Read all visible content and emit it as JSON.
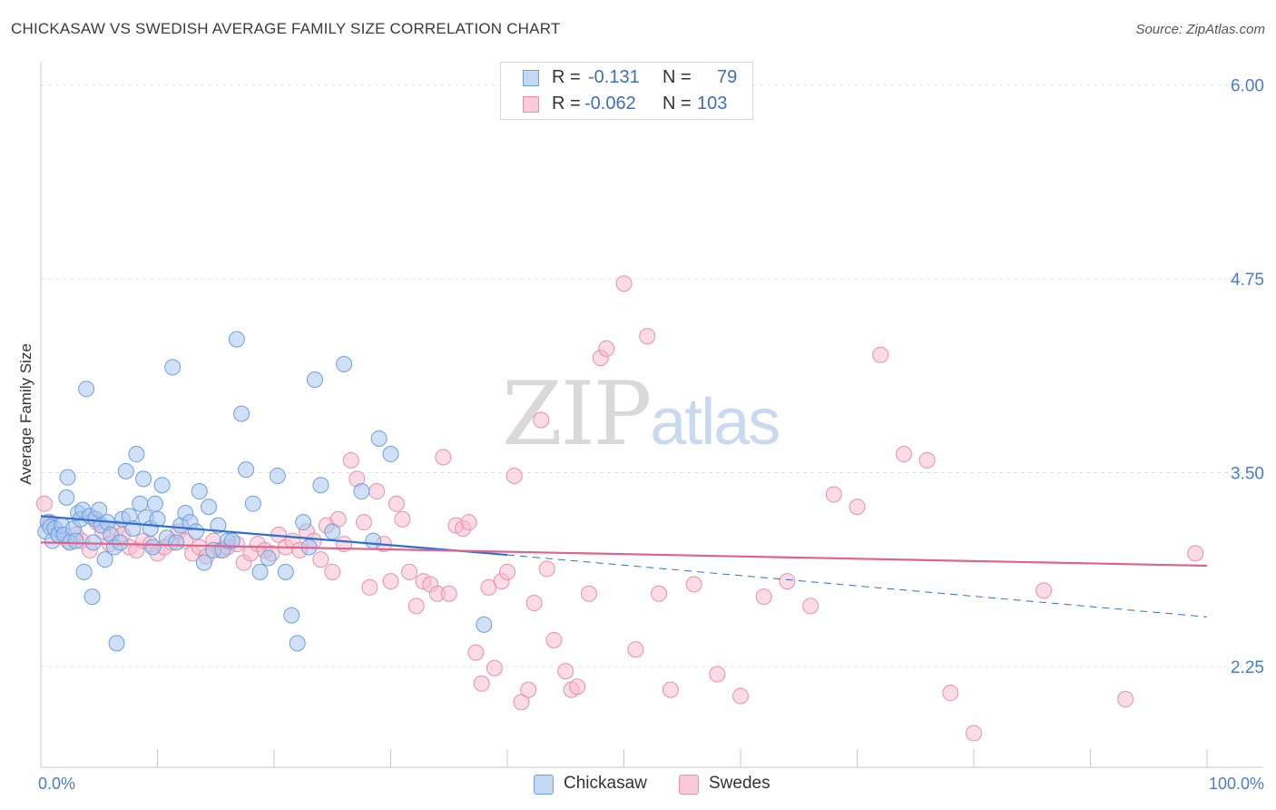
{
  "title": "CHICKASAW VS SWEDISH AVERAGE FAMILY SIZE CORRELATION CHART",
  "source": "Source: ZipAtlas.com",
  "watermark": {
    "part1": "ZIP",
    "part2": "atlas"
  },
  "legend_top": {
    "rows": [
      {
        "r_label": "R =",
        "r_value": "-0.131",
        "n_label": "N =",
        "n_value": "79"
      },
      {
        "r_label": "R =",
        "r_value": "-0.062",
        "n_label": "N =",
        "n_value": "103"
      }
    ]
  },
  "legend_bottom": {
    "items": [
      "Chickasaw",
      "Swedes"
    ]
  },
  "colors": {
    "chickasaw_fill": "#a9c6ef",
    "chickasaw_stroke": "#6e9fde",
    "chickasaw_line": "#2f6fd0",
    "swedes_fill": "#f7b9cc",
    "swedes_stroke": "#ea8fac",
    "swedes_line": "#e0638d",
    "tick_label": "#4a7cc9",
    "grid": "#e3e3e3"
  },
  "chart_data": {
    "type": "scatter",
    "title": "CHICKASAW VS SWEDISH AVERAGE FAMILY SIZE CORRELATION CHART",
    "xlabel": "",
    "ylabel": "Average Family Size",
    "xlim": [
      0,
      100
    ],
    "ylim": [
      1.6,
      6.15
    ],
    "x_tick_labels": [
      "0.0%",
      "100.0%"
    ],
    "y_ticks": [
      2.25,
      3.5,
      4.75,
      6.0
    ],
    "y_tick_labels": [
      "2.25",
      "3.50",
      "4.75",
      "6.00"
    ],
    "grid": true,
    "series": [
      {
        "name": "Chickasaw",
        "R": -0.131,
        "N": 79,
        "trend": {
          "x0": 0,
          "y0": 3.22,
          "x1": 40,
          "y1": 2.97,
          "dashed_to_x": 100,
          "dashed_to_y": 2.57
        },
        "points": [
          [
            0.4,
            3.12
          ],
          [
            0.6,
            3.18
          ],
          [
            0.8,
            3.15
          ],
          [
            1.0,
            3.06
          ],
          [
            1.2,
            3.14
          ],
          [
            1.5,
            3.1
          ],
          [
            1.8,
            3.16
          ],
          [
            2.0,
            3.1
          ],
          [
            2.2,
            3.34
          ],
          [
            2.3,
            3.47
          ],
          [
            2.5,
            3.05
          ],
          [
            2.8,
            3.14
          ],
          [
            3.0,
            3.06
          ],
          [
            3.2,
            3.24
          ],
          [
            3.4,
            3.2
          ],
          [
            3.6,
            3.26
          ],
          [
            3.7,
            2.86
          ],
          [
            3.9,
            4.04
          ],
          [
            4.2,
            3.22
          ],
          [
            4.4,
            2.7
          ],
          [
            4.5,
            3.05
          ],
          [
            4.7,
            3.2
          ],
          [
            5.0,
            3.26
          ],
          [
            5.2,
            3.16
          ],
          [
            5.5,
            2.94
          ],
          [
            5.7,
            3.18
          ],
          [
            6.0,
            3.1
          ],
          [
            6.3,
            3.02
          ],
          [
            6.5,
            2.4
          ],
          [
            6.8,
            3.05
          ],
          [
            7.0,
            3.2
          ],
          [
            7.3,
            3.51
          ],
          [
            7.6,
            3.22
          ],
          [
            7.9,
            3.14
          ],
          [
            8.2,
            3.62
          ],
          [
            8.5,
            3.3
          ],
          [
            8.8,
            3.46
          ],
          [
            9.0,
            3.21
          ],
          [
            9.4,
            3.14
          ],
          [
            9.6,
            3.02
          ],
          [
            9.8,
            3.3
          ],
          [
            10.0,
            3.2
          ],
          [
            10.4,
            3.42
          ],
          [
            10.8,
            3.08
          ],
          [
            11.3,
            4.18
          ],
          [
            11.6,
            3.05
          ],
          [
            12.0,
            3.16
          ],
          [
            12.4,
            3.24
          ],
          [
            12.8,
            3.18
          ],
          [
            13.3,
            3.12
          ],
          [
            13.6,
            3.38
          ],
          [
            14.0,
            2.92
          ],
          [
            14.4,
            3.28
          ],
          [
            14.8,
            3.0
          ],
          [
            15.2,
            3.16
          ],
          [
            15.6,
            3.0
          ],
          [
            16.0,
            3.06
          ],
          [
            16.4,
            3.06
          ],
          [
            16.8,
            4.36
          ],
          [
            17.2,
            3.88
          ],
          [
            17.6,
            3.52
          ],
          [
            18.2,
            3.3
          ],
          [
            18.8,
            2.86
          ],
          [
            19.5,
            2.95
          ],
          [
            20.3,
            3.48
          ],
          [
            21.0,
            2.86
          ],
          [
            21.5,
            2.58
          ],
          [
            22.0,
            2.4
          ],
          [
            22.5,
            3.18
          ],
          [
            23.0,
            3.02
          ],
          [
            23.5,
            4.1
          ],
          [
            24.0,
            3.42
          ],
          [
            25.0,
            3.12
          ],
          [
            26.0,
            4.2
          ],
          [
            27.5,
            3.38
          ],
          [
            28.5,
            3.06
          ],
          [
            29.0,
            3.72
          ],
          [
            30.0,
            3.62
          ],
          [
            38.0,
            2.52
          ]
        ]
      },
      {
        "name": "Swedes",
        "R": -0.062,
        "N": 103,
        "trend": {
          "x0": 0,
          "y0": 3.05,
          "x1": 100,
          "y1": 2.9
        },
        "points": [
          [
            0.3,
            3.3
          ],
          [
            0.8,
            3.18
          ],
          [
            1.5,
            3.1
          ],
          [
            2.3,
            3.06
          ],
          [
            3.0,
            3.1
          ],
          [
            3.5,
            3.06
          ],
          [
            4.2,
            3.0
          ],
          [
            4.8,
            3.18
          ],
          [
            5.3,
            3.12
          ],
          [
            5.9,
            3.04
          ],
          [
            6.5,
            3.14
          ],
          [
            7.0,
            3.1
          ],
          [
            7.6,
            3.02
          ],
          [
            8.2,
            3.0
          ],
          [
            8.8,
            3.06
          ],
          [
            9.4,
            3.04
          ],
          [
            10.0,
            2.98
          ],
          [
            10.6,
            3.02
          ],
          [
            11.2,
            3.05
          ],
          [
            11.8,
            3.12
          ],
          [
            12.4,
            3.06
          ],
          [
            13.0,
            2.98
          ],
          [
            13.6,
            3.02
          ],
          [
            14.2,
            2.96
          ],
          [
            14.8,
            3.06
          ],
          [
            15.4,
            3.0
          ],
          [
            16.0,
            3.02
          ],
          [
            16.8,
            3.04
          ],
          [
            17.4,
            2.92
          ],
          [
            18.0,
            2.98
          ],
          [
            18.6,
            3.04
          ],
          [
            19.2,
            3.0
          ],
          [
            19.8,
            2.98
          ],
          [
            20.4,
            3.1
          ],
          [
            21.0,
            3.02
          ],
          [
            21.6,
            3.06
          ],
          [
            22.2,
            3.0
          ],
          [
            22.8,
            3.12
          ],
          [
            23.4,
            3.06
          ],
          [
            24.0,
            2.94
          ],
          [
            24.5,
            3.16
          ],
          [
            25.0,
            2.86
          ],
          [
            25.5,
            3.2
          ],
          [
            26.0,
            3.04
          ],
          [
            26.6,
            3.58
          ],
          [
            27.1,
            3.46
          ],
          [
            27.7,
            3.18
          ],
          [
            28.2,
            2.76
          ],
          [
            28.8,
            3.38
          ],
          [
            29.4,
            3.04
          ],
          [
            30.0,
            2.8
          ],
          [
            30.5,
            3.3
          ],
          [
            31.0,
            3.2
          ],
          [
            31.6,
            2.86
          ],
          [
            32.2,
            2.64
          ],
          [
            32.8,
            2.8
          ],
          [
            33.4,
            2.78
          ],
          [
            34.0,
            2.72
          ],
          [
            34.5,
            3.6
          ],
          [
            35.0,
            2.72
          ],
          [
            35.6,
            3.16
          ],
          [
            36.2,
            3.14
          ],
          [
            36.7,
            3.18
          ],
          [
            37.3,
            2.34
          ],
          [
            37.8,
            2.14
          ],
          [
            38.4,
            2.76
          ],
          [
            38.9,
            2.24
          ],
          [
            39.5,
            2.8
          ],
          [
            40.0,
            2.86
          ],
          [
            40.6,
            3.48
          ],
          [
            41.2,
            2.02
          ],
          [
            41.8,
            2.1
          ],
          [
            42.3,
            2.66
          ],
          [
            42.9,
            3.84
          ],
          [
            43.4,
            2.88
          ],
          [
            44.0,
            2.42
          ],
          [
            45.0,
            2.22
          ],
          [
            45.5,
            2.1
          ],
          [
            46.0,
            2.12
          ],
          [
            47.0,
            2.72
          ],
          [
            48.0,
            4.24
          ],
          [
            48.5,
            4.3
          ],
          [
            50.0,
            4.72
          ],
          [
            51.0,
            2.36
          ],
          [
            52.0,
            4.38
          ],
          [
            53.0,
            2.72
          ],
          [
            54.0,
            2.1
          ],
          [
            56.0,
            2.78
          ],
          [
            58.0,
            2.2
          ],
          [
            60.0,
            2.06
          ],
          [
            62.0,
            2.7
          ],
          [
            64.0,
            2.8
          ],
          [
            66.0,
            2.64
          ],
          [
            68.0,
            3.36
          ],
          [
            70.0,
            3.28
          ],
          [
            72.0,
            4.26
          ],
          [
            74.0,
            3.62
          ],
          [
            76.0,
            3.58
          ],
          [
            78.0,
            2.08
          ],
          [
            80.0,
            1.82
          ],
          [
            86.0,
            2.74
          ],
          [
            93.0,
            2.04
          ],
          [
            99.0,
            2.98
          ]
        ]
      }
    ]
  }
}
